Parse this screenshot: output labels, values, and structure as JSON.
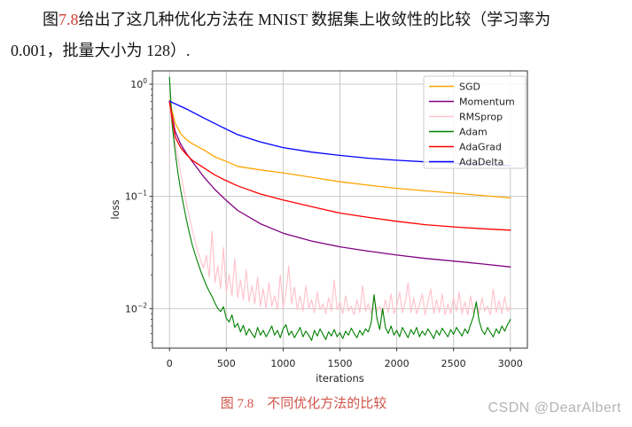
{
  "page": {
    "paragraph": {
      "seg_before_ref": "图",
      "ref": "7.8",
      "ref_color": "#d03c31",
      "seg_after_ref": "给出了这几种优化方法在 MNIST 数据集上收敛性的比较（学习率为",
      "line2": "0.001，批量大小为 128）."
    },
    "caption": {
      "text": "图 7.8　不同优化方法的比较",
      "color": "#d0544a"
    },
    "watermark": {
      "text": "CSDN @DearAlbert",
      "color": "#b4b4b4"
    }
  },
  "chart_data": {
    "type": "line",
    "title": "",
    "xlabel": "iterations",
    "ylabel": "loss",
    "y_scale": "log",
    "grid": true,
    "legend_position": "upper right",
    "xlim": [
      -150,
      3150
    ],
    "ylim": [
      0.00444,
      1.314
    ],
    "x_ticks": [
      0,
      500,
      1000,
      1500,
      2000,
      2500,
      3000
    ],
    "y_ticks": [
      {
        "value": 1,
        "label_base": "10",
        "label_exp": "0"
      },
      {
        "value": 0.1,
        "label_base": "10",
        "label_exp": "−1"
      },
      {
        "value": 0.01,
        "label_base": "10",
        "label_exp": "−2"
      }
    ],
    "style": {
      "grid_color": "#c9c9c9",
      "spine_color": "#333333",
      "text_color": "#222222",
      "legend_border": "#cccccc"
    },
    "series": [
      {
        "name": "SGD",
        "color": "#ffa500",
        "width": 1.3,
        "x": [
          0,
          50,
          100,
          150,
          200,
          300,
          400,
          500,
          600,
          800,
          1000,
          1250,
          1500,
          1750,
          2000,
          2250,
          2500,
          2750,
          3000
        ],
        "y": [
          0.72,
          0.45,
          0.36,
          0.32,
          0.295,
          0.26,
          0.225,
          0.205,
          0.185,
          0.172,
          0.162,
          0.148,
          0.135,
          0.126,
          0.118,
          0.112,
          0.107,
          0.102,
          0.097
        ]
      },
      {
        "name": "Momentum",
        "color": "#800080",
        "width": 1.3,
        "x": [
          0,
          50,
          100,
          150,
          200,
          300,
          400,
          500,
          600,
          800,
          1000,
          1250,
          1500,
          1750,
          2000,
          2250,
          2500,
          2750,
          3000
        ],
        "y": [
          0.7,
          0.38,
          0.29,
          0.24,
          0.205,
          0.15,
          0.115,
          0.092,
          0.075,
          0.057,
          0.047,
          0.04,
          0.0355,
          0.0325,
          0.03,
          0.028,
          0.0265,
          0.025,
          0.0235
        ]
      },
      {
        "name": "RMSprop",
        "color": "#ffc0cb",
        "width": 1.1,
        "x_start": 0,
        "x_step": 25,
        "y": [
          0.62,
          0.42,
          0.3,
          0.22,
          0.16,
          0.115,
          0.085,
          0.065,
          0.05,
          0.04,
          0.032,
          0.027,
          0.023,
          0.03,
          0.019,
          0.049,
          0.017,
          0.024,
          0.015,
          0.035,
          0.014,
          0.02,
          0.013,
          0.028,
          0.0125,
          0.018,
          0.012,
          0.022,
          0.0115,
          0.016,
          0.011,
          0.019,
          0.0105,
          0.015,
          0.01,
          0.017,
          0.0105,
          0.013,
          0.0098,
          0.02,
          0.0102,
          0.014,
          0.024,
          0.011,
          0.0155,
          0.0098,
          0.013,
          0.0095,
          0.016,
          0.01,
          0.012,
          0.0092,
          0.014,
          0.0098,
          0.011,
          0.009,
          0.0125,
          0.0095,
          0.018,
          0.0098,
          0.0115,
          0.009,
          0.013,
          0.0095,
          0.0105,
          0.0088,
          0.012,
          0.0092,
          0.016,
          0.0095,
          0.011,
          0.009,
          0.013,
          0.0095,
          0.0105,
          0.0088,
          0.012,
          0.0092,
          0.0135,
          0.009,
          0.0105,
          0.014,
          0.0092,
          0.0115,
          0.017,
          0.0092,
          0.0125,
          0.009,
          0.0108,
          0.0135,
          0.0088,
          0.0115,
          0.015,
          0.009,
          0.012,
          0.0092,
          0.0135,
          0.0088,
          0.011,
          0.009,
          0.0125,
          0.0095,
          0.014,
          0.009,
          0.0115,
          0.0088,
          0.013,
          0.0092,
          0.011,
          0.009,
          0.0125,
          0.0095,
          0.0105,
          0.0088,
          0.015,
          0.0092,
          0.0118,
          0.009,
          0.0128,
          0.0095,
          0.0105
        ]
      },
      {
        "name": "Adam",
        "color": "#008000",
        "width": 1.1,
        "x_start": 0,
        "x_step": 25,
        "y": [
          1.15,
          0.42,
          0.25,
          0.16,
          0.112,
          0.082,
          0.061,
          0.047,
          0.037,
          0.0305,
          0.0255,
          0.0215,
          0.0185,
          0.016,
          0.0142,
          0.0128,
          0.0112,
          0.01,
          0.0094,
          0.0104,
          0.0082,
          0.0076,
          0.0088,
          0.0068,
          0.0074,
          0.0062,
          0.0071,
          0.0058,
          0.0066,
          0.006,
          0.0055,
          0.0068,
          0.0058,
          0.0064,
          0.0056,
          0.0062,
          0.007,
          0.0058,
          0.0064,
          0.0055,
          0.0066,
          0.0072,
          0.0058,
          0.0063,
          0.0055,
          0.0061,
          0.0068,
          0.0056,
          0.0063,
          0.0058,
          0.0052,
          0.0064,
          0.0057,
          0.0066,
          0.0059,
          0.0053,
          0.0062,
          0.0057,
          0.0065,
          0.0056,
          0.0061,
          0.0054,
          0.0063,
          0.0058,
          0.0067,
          0.006,
          0.0055,
          0.0064,
          0.0058,
          0.0066,
          0.0062,
          0.0075,
          0.0133,
          0.0082,
          0.0065,
          0.01,
          0.0068,
          0.006,
          0.007,
          0.0058,
          0.0064,
          0.0056,
          0.0068,
          0.0061,
          0.0055,
          0.0065,
          0.0059,
          0.0068,
          0.0056,
          0.0063,
          0.0058,
          0.0066,
          0.006,
          0.0054,
          0.0064,
          0.0058,
          0.0067,
          0.0061,
          0.0056,
          0.0065,
          0.0059,
          0.0068,
          0.0062,
          0.0057,
          0.0066,
          0.006,
          0.0072,
          0.0085,
          0.0115,
          0.0078,
          0.0064,
          0.0059,
          0.0068,
          0.0061,
          0.0056,
          0.0066,
          0.006,
          0.007,
          0.0063,
          0.0072,
          0.008
        ]
      },
      {
        "name": "AdaGrad",
        "color": "#ff0000",
        "width": 1.3,
        "x": [
          0,
          50,
          100,
          150,
          200,
          300,
          400,
          500,
          600,
          800,
          1000,
          1250,
          1500,
          1750,
          2000,
          2250,
          2500,
          2750,
          3000
        ],
        "y": [
          0.7,
          0.34,
          0.27,
          0.235,
          0.21,
          0.18,
          0.155,
          0.138,
          0.124,
          0.105,
          0.093,
          0.081,
          0.071,
          0.065,
          0.06,
          0.056,
          0.0535,
          0.0515,
          0.05
        ]
      },
      {
        "name": "AdaDelta",
        "color": "#0000ff",
        "width": 1.3,
        "x": [
          0,
          150,
          300,
          450,
          600,
          800,
          1000,
          1250,
          1500,
          1750,
          2000,
          2250,
          2500,
          2750,
          3000
        ],
        "y": [
          0.705,
          0.6,
          0.5,
          0.42,
          0.355,
          0.305,
          0.272,
          0.248,
          0.232,
          0.219,
          0.21,
          0.203,
          0.198,
          0.193,
          0.188
        ]
      }
    ]
  }
}
